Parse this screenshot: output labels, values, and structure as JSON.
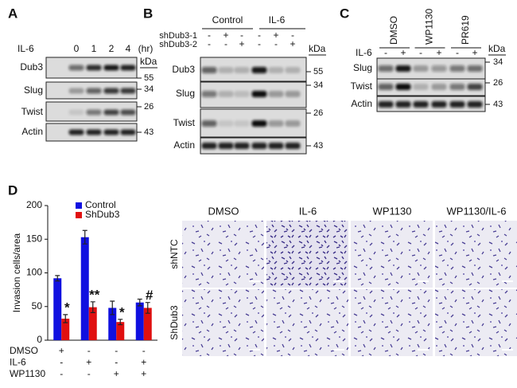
{
  "panels": {
    "A": {
      "label": "A",
      "treatment": "IL-6",
      "times": [
        0,
        1,
        2,
        4
      ],
      "unit": "(hr)",
      "rows": [
        "Dub3",
        "Slug",
        "Twist",
        "Actin"
      ],
      "kda_header": "kDa",
      "kda": [
        55,
        34,
        26,
        43
      ]
    },
    "B": {
      "label": "B",
      "groups": [
        "Control",
        "IL-6"
      ],
      "shrna": [
        {
          "name": "shDub3-1",
          "signs": [
            "-",
            "+",
            "-",
            "-",
            "+",
            "-"
          ]
        },
        {
          "name": "shDub3-2",
          "signs": [
            "-",
            "-",
            "+",
            "-",
            "-",
            "+"
          ]
        }
      ],
      "rows": [
        "Dub3",
        "Slug",
        "Twist",
        "Actin"
      ],
      "kda_header": "kDa",
      "kda": [
        55,
        34,
        26,
        43
      ]
    },
    "C": {
      "label": "C",
      "treatments": [
        "DMSO",
        "WP1130",
        "PR619"
      ],
      "stimulus": {
        "name": "IL-6",
        "signs": [
          "-",
          "+",
          "-",
          "+",
          "-",
          "+"
        ]
      },
      "rows": [
        "Slug",
        "Twist",
        "Actin"
      ],
      "kda_header": "kDa",
      "kda": [
        34,
        26,
        43
      ]
    },
    "D": {
      "label": "D",
      "micrograph_columns": [
        "DMSO",
        "IL-6",
        "WP1130",
        "WP1130/IL-6"
      ],
      "micrograph_rows": [
        "shNTC",
        "ShDub3"
      ]
    }
  },
  "chart_data": {
    "type": "bar",
    "ylabel": "Invasion cells/area",
    "categories": [
      null,
      null,
      null,
      null
    ],
    "series": [
      {
        "name": "Control",
        "color": "#1010e0",
        "values": [
          92,
          153,
          48,
          56
        ],
        "errors": [
          4,
          10,
          10,
          5
        ]
      },
      {
        "name": "ShDub3",
        "color": "#e01010",
        "values": [
          32,
          49,
          27,
          48
        ],
        "errors": [
          6,
          8,
          4,
          8
        ]
      }
    ],
    "significance": [
      "*",
      "**",
      "*",
      "#"
    ],
    "conditions": [
      {
        "name": "DMSO",
        "signs": [
          "+",
          "-",
          "-",
          "-"
        ]
      },
      {
        "name": "IL-6",
        "signs": [
          "-",
          "+",
          "-",
          "+"
        ]
      },
      {
        "name": "WP1130",
        "signs": [
          "-",
          "-",
          "+",
          "+"
        ]
      }
    ],
    "ylim": [
      0,
      200
    ],
    "yticks": [
      0,
      50,
      100,
      150,
      200
    ],
    "legend": "upper left"
  }
}
